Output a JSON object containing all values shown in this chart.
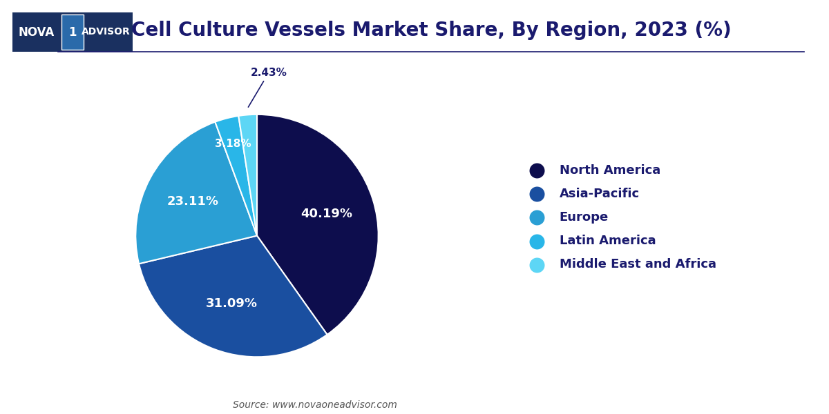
{
  "title": "Cell Culture Vessels Market Share, By Region, 2023 (%)",
  "title_color": "#1a1a6e",
  "title_fontsize": 20,
  "source_text": "Source: www.novaoneadvisor.com",
  "labels": [
    "North America",
    "Asia-Pacific",
    "Europe",
    "Latin America",
    "Middle East and Africa"
  ],
  "values": [
    40.19,
    31.09,
    23.11,
    3.18,
    2.43
  ],
  "colors": [
    "#0d0d4d",
    "#1a4fa0",
    "#2a9fd4",
    "#29b6e8",
    "#5dd6f5"
  ],
  "pct_labels": [
    "40.19%",
    "31.09%",
    "23.11%",
    "3.18%",
    "2.43%"
  ],
  "legend_text_color": "#1a1a6e",
  "legend_fontsize": 13,
  "background_color": "#ffffff",
  "startangle": 90,
  "line_color": "#1a1a6e",
  "logo_bg": "#1a3a6e",
  "logo_mid_bg": "#2a6aaa"
}
